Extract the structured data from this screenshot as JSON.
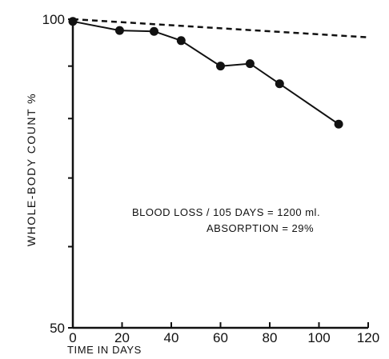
{
  "chart_data": {
    "type": "line",
    "title": "",
    "xlabel": "TIME IN DAYS",
    "ylabel": "WHOLE-BODY COUNT %",
    "xlim": [
      0,
      120
    ],
    "ylim": [
      50,
      100
    ],
    "y_scale": "log",
    "grid": false,
    "x_ticks": [
      0,
      20,
      40,
      60,
      80,
      100,
      120
    ],
    "x_tick_labels": [
      "0",
      "20",
      "40",
      "60",
      "80",
      "100",
      "120"
    ],
    "y_tick_labels": [
      "50",
      "100"
    ],
    "series": [
      {
        "style": "solid-markers",
        "x": [
          0,
          19,
          33,
          44,
          60,
          72,
          84,
          108
        ],
        "y": [
          99.5,
          97.5,
          97.3,
          95.3,
          90.0,
          90.5,
          86.5,
          79.0
        ]
      },
      {
        "style": "dashed",
        "x": [
          0,
          120
        ],
        "y": [
          100,
          96.0
        ]
      }
    ],
    "annotations": [
      "BLOOD LOSS / 105 DAYS = 1200 ml.",
      "ABSORPTION = 29%"
    ]
  }
}
